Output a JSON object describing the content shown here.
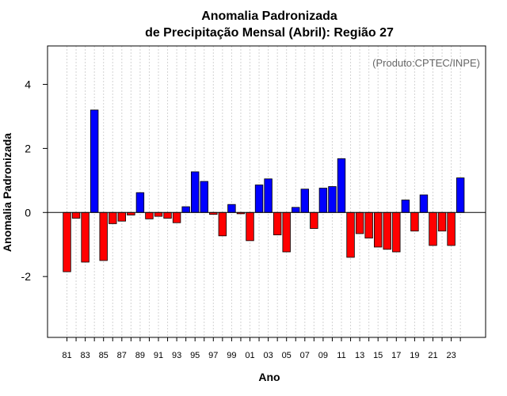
{
  "chart_data": {
    "type": "bar",
    "title_line1": "Anomalia Padronizada",
    "title_line2": "de Precipitação Mensal (Abril): Região 27",
    "xlabel": "Ano",
    "ylabel": "Anomalia Padronizada",
    "credit": "(Produto:CPTEC/INPE)",
    "ylim": [
      -3.9,
      5.2
    ],
    "yticks": [
      -2,
      0,
      2,
      4
    ],
    "categories": [
      "81",
      "82",
      "83",
      "84",
      "85",
      "86",
      "87",
      "88",
      "89",
      "90",
      "91",
      "92",
      "93",
      "94",
      "95",
      "96",
      "97",
      "98",
      "99",
      "00",
      "01",
      "02",
      "03",
      "04",
      "05",
      "06",
      "07",
      "08",
      "09",
      "10",
      "11",
      "12",
      "13",
      "14",
      "15",
      "16",
      "17",
      "18",
      "19",
      "20",
      "21",
      "22",
      "23",
      "24"
    ],
    "xtick_labels": [
      "81",
      "83",
      "85",
      "87",
      "89",
      "91",
      "93",
      "95",
      "97",
      "99",
      "01",
      "03",
      "05",
      "07",
      "09",
      "11",
      "13",
      "15",
      "17",
      "19",
      "21",
      "23"
    ],
    "values": [
      -1.85,
      -0.18,
      -1.55,
      3.2,
      -1.5,
      -0.35,
      -0.27,
      -0.08,
      0.62,
      -0.2,
      -0.12,
      -0.18,
      -0.32,
      0.18,
      1.27,
      0.97,
      -0.06,
      -0.73,
      0.25,
      -0.04,
      -0.88,
      0.86,
      1.05,
      -0.7,
      -1.23,
      0.16,
      0.73,
      -0.5,
      0.76,
      0.81,
      1.68,
      -1.4,
      -0.66,
      -0.8,
      -1.08,
      -1.15,
      -1.23,
      0.39,
      -0.58,
      0.55,
      -1.03,
      -0.58,
      -1.03,
      1.08
    ],
    "colors": {
      "positive": "#0000ff",
      "negative": "#ff0000",
      "bar_border": "#000000",
      "grid": "#d3d3d3",
      "credit": "#666666"
    },
    "grid": true
  }
}
